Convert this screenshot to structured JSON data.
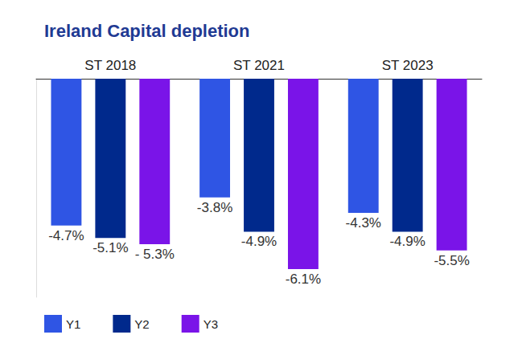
{
  "chart_data": {
    "type": "bar",
    "title": "Ireland Capital depletion",
    "categories": [
      "ST 2018",
      "ST 2021",
      "ST 2023"
    ],
    "series": [
      {
        "name": "Y1",
        "color": "#2f55e4",
        "values": [
          -4.7,
          -3.8,
          -4.3
        ],
        "value_labels": [
          "-4.7%",
          "-3.8%",
          "-4.3%"
        ]
      },
      {
        "name": "Y2",
        "color": "#00298c",
        "values": [
          -5.1,
          -4.9,
          -4.9
        ],
        "value_labels": [
          "-5.1%",
          "-4.9%",
          "-4.9%"
        ]
      },
      {
        "name": "Y3",
        "color": "#7a14e8",
        "values": [
          -5.3,
          -6.1,
          -5.5
        ],
        "value_labels": [
          "- 5.3%",
          "-6.1%",
          "-5.5%"
        ]
      }
    ],
    "ylim": [
      -7,
      0
    ],
    "data_labels": true,
    "tick_labels": "x",
    "legend": "lower left",
    "grid": false
  }
}
